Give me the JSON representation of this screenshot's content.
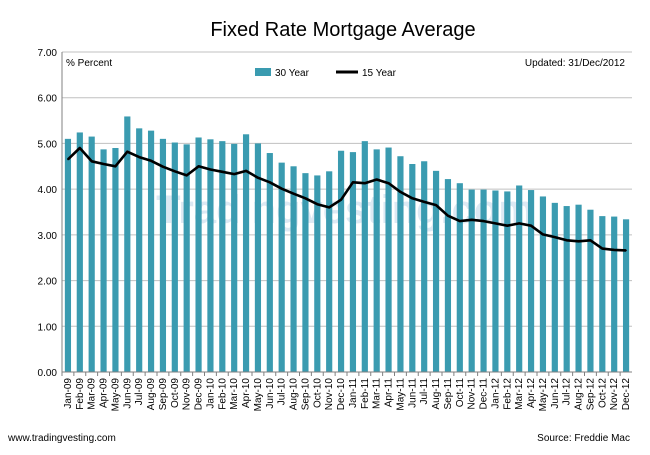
{
  "header": {
    "title": "Fixed Rate Mortgage Average",
    "units": "% Percent",
    "updated": "Updated: 31/Dec/2012"
  },
  "watermark": "Tradingvesting.com",
  "footer": {
    "left": "www.tradingvesting.com",
    "right": "Source: Freddie Mac"
  },
  "colors": {
    "bar": "#3a9bb0",
    "line": "#000000",
    "grid": "#c0c0c0",
    "axis": "#808080"
  },
  "chart_data": {
    "type": "bar",
    "title": "Fixed Rate Mortgage Average",
    "xlabel": "",
    "ylabel": "% Percent",
    "ylim": [
      0,
      7
    ],
    "yticks": [
      "0.00",
      "1.00",
      "2.00",
      "3.00",
      "4.00",
      "5.00",
      "6.00",
      "7.00"
    ],
    "grid": true,
    "legend_position": "top-center",
    "categories": [
      "Jan-09",
      "Feb-09",
      "Mar-09",
      "Apr-09",
      "May-09",
      "Jun-09",
      "Jul-09",
      "Aug-09",
      "Sep-09",
      "Oct-09",
      "Nov-09",
      "Dec-09",
      "Jan-10",
      "Feb-10",
      "Mar-10",
      "Apr-10",
      "May-10",
      "Jun-10",
      "Jul-10",
      "Aug-10",
      "Sep-10",
      "Oct-10",
      "Nov-10",
      "Dec-10",
      "Jan-11",
      "Feb-11",
      "Mar-11",
      "Apr-11",
      "May-11",
      "Jun-11",
      "Jul-11",
      "Aug-11",
      "Sep-11",
      "Oct-11",
      "Nov-11",
      "Dec-11",
      "Jan-12",
      "Feb-12",
      "Mar-12",
      "Apr-12",
      "May-12",
      "Jun-12",
      "Jul-12",
      "Aug-12",
      "Sep-12",
      "Oct-12",
      "Nov-12",
      "Dec-12"
    ],
    "series": [
      {
        "name": "30 Year",
        "style": "bar",
        "values": [
          5.1,
          5.24,
          5.15,
          4.87,
          4.9,
          5.59,
          5.33,
          5.28,
          5.1,
          5.02,
          4.98,
          5.13,
          5.09,
          5.05,
          4.99,
          5.2,
          5.0,
          4.79,
          4.58,
          4.5,
          4.35,
          4.3,
          4.39,
          4.84,
          4.81,
          5.05,
          4.87,
          4.91,
          4.72,
          4.55,
          4.61,
          4.4,
          4.22,
          4.13,
          3.99,
          3.99,
          3.97,
          3.95,
          4.08,
          3.98,
          3.84,
          3.7,
          3.63,
          3.66,
          3.55,
          3.41,
          3.4,
          3.34
        ]
      },
      {
        "name": "15 Year",
        "style": "line",
        "values": [
          4.65,
          4.9,
          4.61,
          4.55,
          4.5,
          4.82,
          4.7,
          4.62,
          4.49,
          4.39,
          4.3,
          4.5,
          4.43,
          4.38,
          4.33,
          4.4,
          4.25,
          4.15,
          4.01,
          3.9,
          3.8,
          3.67,
          3.6,
          3.77,
          4.15,
          4.13,
          4.21,
          4.13,
          3.94,
          3.8,
          3.72,
          3.65,
          3.42,
          3.3,
          3.33,
          3.3,
          3.25,
          3.2,
          3.25,
          3.2,
          3.01,
          2.95,
          2.88,
          2.86,
          2.88,
          2.7,
          2.67,
          2.66
        ]
      }
    ]
  }
}
